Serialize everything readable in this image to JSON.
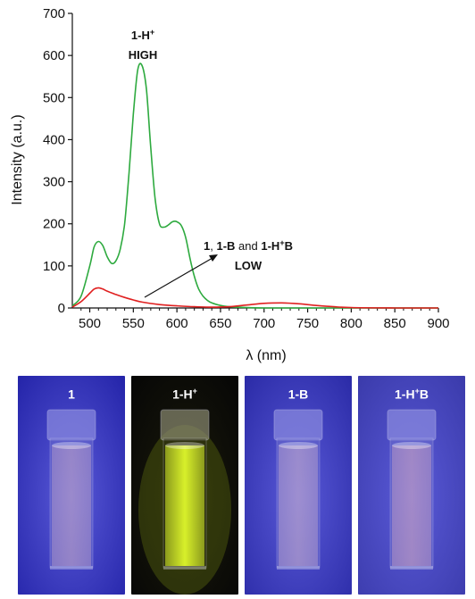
{
  "chart_data": {
    "type": "line",
    "xlabel": "λ (nm)",
    "ylabel": "Intensity (a.u.)",
    "xlim": [
      480,
      900
    ],
    "ylim": [
      0,
      700
    ],
    "xticks": [
      500,
      550,
      600,
      650,
      700,
      750,
      800,
      850,
      900
    ],
    "yticks": [
      0,
      100,
      200,
      300,
      400,
      500,
      600,
      700
    ],
    "grid": false,
    "series": [
      {
        "color": "#2eaa3f",
        "x": [
          480,
          490,
          500,
          505,
          510,
          515,
          520,
          525,
          530,
          535,
          540,
          545,
          550,
          555,
          560,
          565,
          570,
          575,
          580,
          585,
          590,
          595,
          600,
          605,
          610,
          615,
          620,
          625,
          630,
          635,
          640,
          650,
          660,
          680,
          700,
          750,
          800,
          900
        ],
        "y": [
          5,
          28,
          100,
          145,
          158,
          148,
          122,
          106,
          112,
          140,
          200,
          320,
          460,
          565,
          576,
          520,
          380,
          260,
          200,
          192,
          197,
          205,
          205,
          196,
          168,
          118,
          75,
          45,
          28,
          18,
          12,
          6,
          3,
          1,
          0,
          0,
          0,
          0
        ]
      },
      {
        "color": "#e02020",
        "x": [
          480,
          490,
          500,
          505,
          510,
          515,
          520,
          530,
          540,
          550,
          560,
          580,
          600,
          620,
          640,
          660,
          680,
          700,
          720,
          740,
          760,
          780,
          800,
          850,
          900
        ],
        "y": [
          2,
          15,
          35,
          45,
          48,
          45,
          40,
          32,
          25,
          19,
          14,
          8,
          5,
          3,
          2,
          3,
          7,
          11,
          12,
          10,
          6,
          3,
          1,
          0,
          0
        ]
      }
    ],
    "annotations": {
      "high_line1": "1-H",
      "high_sup": "+",
      "high_line2": "HIGH",
      "low_p1": "1",
      "low_p2": ", ",
      "low_p3": "1-B",
      "low_p4": " and ",
      "low_p5": "1-H",
      "low_p6": "+",
      "low_p7": "B",
      "low_line2": "LOW"
    }
  },
  "photos": [
    {
      "label": "1",
      "sup": "",
      "label_after": "",
      "liquid": "#c9a9c6",
      "bg": "#2323a8",
      "glow": false
    },
    {
      "label": "1-H",
      "sup": "+",
      "label_after": "",
      "liquid": "#d8f02a",
      "bg": "#060606",
      "glow": true
    },
    {
      "label": "1-B",
      "sup": "",
      "label_after": "",
      "liquid": "#cfb2cd",
      "bg": "#2a2aa6",
      "glow": false
    },
    {
      "label": "1-H",
      "sup": "+",
      "label_after": "B",
      "liquid": "#d8a9c0",
      "bg": "#3a3aaa",
      "glow": false
    }
  ]
}
